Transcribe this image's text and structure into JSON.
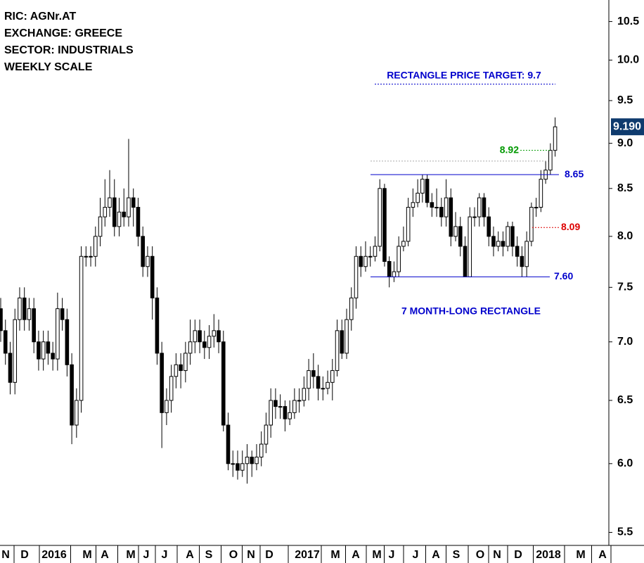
{
  "chart_data": {
    "type": "candlestick",
    "info": [
      "RIC: AGNr.AT",
      "EXCHANGE: GREECE",
      "SECTOR: INDUSTRIALS",
      "WEEKLY SCALE"
    ],
    "annotations": [
      {
        "text": "RECTANGLE PRICE TARGET: 9.7",
        "color": "#0000cc"
      },
      {
        "text": "7 MONTH-LONG RECTANGLE",
        "color": "#0000cc"
      }
    ],
    "categories": [
      "N",
      "D",
      "2016",
      "M",
      "A",
      "M",
      "J",
      "J",
      "A",
      "S",
      "O",
      "N",
      "D",
      "2017",
      "M",
      "A",
      "M",
      "J",
      "J",
      "A",
      "S",
      "O",
      "N",
      "D",
      "2018",
      "M",
      "A"
    ],
    "log_scale": true,
    "ylim": [
      5.41,
      10.79
    ],
    "yticks": [
      {
        "value": 5.5,
        "label": "5.5"
      },
      {
        "value": 6,
        "label": "6.0"
      },
      {
        "value": 6.5,
        "label": "6.5"
      },
      {
        "value": 7,
        "label": "7.0"
      },
      {
        "value": 7.5,
        "label": "7.5"
      },
      {
        "value": 8,
        "label": "8.0"
      },
      {
        "value": 8.5,
        "label": "8.5"
      },
      {
        "value": 9,
        "label": "9.0"
      },
      {
        "value": 9.5,
        "label": "9.5"
      },
      {
        "value": 10,
        "label": "10.0"
      },
      {
        "value": 10.5,
        "label": "10.5"
      }
    ],
    "up_color": "#ffffff",
    "down_color": "#000000",
    "open": [
      7.3,
      7.1,
      6.9,
      6.65,
      7.2,
      7.4,
      7.2,
      7.3,
      7.0,
      6.85,
      7.0,
      6.9,
      6.85,
      7.3,
      7.2,
      6.8,
      6.3,
      6.5,
      7.8,
      7.8,
      7.8,
      8.0,
      8.2,
      8.3,
      8.4,
      8.1,
      8.25,
      8.2,
      8.4,
      8.3,
      8.0,
      7.7,
      7.8,
      7.4,
      6.9,
      6.4,
      6.5,
      6.7,
      6.8,
      6.75,
      6.9,
      7.0,
      7.1,
      7.0,
      6.95,
      7.05,
      7.1,
      7.0,
      6.3,
      6.0,
      6.0,
      5.95,
      6.0,
      6.05,
      6.0,
      6.05,
      6.15,
      6.3,
      6.5,
      6.45,
      6.45,
      6.35,
      6.4,
      6.5,
      6.5,
      6.6,
      6.75,
      6.7,
      6.6,
      6.6,
      6.65,
      6.75,
      7.1,
      6.9,
      7.2,
      7.4,
      7.8,
      7.7,
      7.8,
      7.8,
      7.9,
      8.5,
      7.75,
      7.6,
      7.65,
      7.9,
      7.95,
      8.3,
      8.35,
      8.45,
      8.6,
      8.35,
      8.3,
      8.3,
      8.2,
      8.4,
      8.0,
      8.1,
      7.9,
      7.6,
      8.2,
      8.2,
      8.4,
      8.2,
      8.0,
      7.9,
      7.95,
      7.9,
      8.1,
      7.9,
      7.8,
      7.7,
      7.95,
      8.3,
      8.3,
      8.6,
      8.7,
      8.92
    ],
    "high": [
      7.4,
      7.2,
      7.0,
      7.3,
      7.5,
      7.5,
      7.4,
      7.4,
      7.1,
      7.1,
      7.1,
      7.0,
      7.45,
      7.4,
      7.3,
      6.9,
      6.6,
      7.9,
      7.9,
      7.9,
      8.1,
      8.4,
      8.6,
      8.7,
      8.6,
      8.4,
      8.5,
      9.05,
      8.5,
      8.4,
      8.1,
      7.9,
      7.9,
      7.5,
      7.0,
      6.6,
      6.8,
      6.9,
      6.9,
      7.0,
      7.2,
      7.2,
      7.2,
      7.1,
      7.15,
      7.25,
      7.2,
      7.1,
      6.4,
      6.1,
      6.1,
      6.1,
      6.15,
      6.1,
      6.15,
      6.25,
      6.4,
      6.6,
      6.6,
      6.55,
      6.5,
      6.5,
      6.6,
      6.6,
      6.7,
      6.85,
      6.9,
      6.8,
      6.7,
      6.75,
      6.85,
      7.2,
      7.2,
      7.3,
      7.5,
      7.9,
      7.9,
      7.95,
      7.9,
      8.0,
      8.6,
      8.55,
      7.8,
      7.75,
      8.0,
      8.1,
      8.4,
      8.5,
      8.6,
      8.65,
      8.65,
      8.45,
      8.5,
      8.4,
      8.6,
      8.5,
      8.25,
      8.2,
      8.0,
      8.3,
      8.3,
      8.45,
      8.45,
      8.3,
      8.1,
      8.05,
      8.05,
      8.15,
      8.15,
      8.0,
      7.9,
      8.05,
      8.35,
      8.4,
      8.7,
      8.8,
      9.0,
      9.3
    ],
    "low": [
      7.0,
      6.8,
      6.55,
      6.55,
      7.1,
      7.1,
      7.1,
      6.9,
      6.75,
      6.75,
      6.8,
      6.75,
      6.75,
      7.1,
      6.7,
      6.15,
      6.2,
      6.4,
      7.7,
      7.7,
      7.7,
      7.9,
      8.1,
      8.2,
      8.0,
      8.0,
      8.1,
      8.1,
      8.1,
      7.9,
      7.6,
      7.6,
      7.2,
      6.8,
      6.12,
      6.3,
      6.4,
      6.6,
      6.6,
      6.65,
      6.8,
      6.9,
      6.9,
      6.85,
      6.85,
      6.95,
      6.9,
      6.25,
      5.95,
      5.9,
      5.88,
      5.9,
      5.85,
      5.9,
      5.95,
      5.98,
      6.08,
      6.2,
      6.35,
      6.35,
      6.25,
      6.3,
      6.35,
      6.4,
      6.45,
      6.5,
      6.6,
      6.5,
      6.5,
      6.55,
      6.5,
      6.7,
      6.85,
      6.85,
      7.1,
      7.3,
      7.6,
      7.65,
      7.7,
      7.75,
      7.85,
      7.7,
      7.5,
      7.55,
      7.6,
      7.85,
      7.9,
      8.2,
      8.3,
      8.35,
      8.3,
      8.2,
      8.2,
      8.1,
      8.1,
      7.9,
      7.95,
      7.8,
      7.6,
      7.6,
      8.1,
      8.1,
      8.1,
      7.9,
      7.8,
      7.85,
      7.8,
      7.85,
      7.8,
      7.7,
      7.6,
      7.6,
      7.9,
      8.2,
      8.25,
      8.55,
      8.65,
      8.85
    ],
    "close": [
      7.1,
      6.9,
      6.65,
      7.2,
      7.4,
      7.2,
      7.3,
      7.0,
      6.85,
      7.0,
      6.9,
      6.85,
      7.3,
      7.2,
      6.8,
      6.3,
      6.5,
      7.8,
      7.8,
      7.8,
      8.0,
      8.2,
      8.3,
      8.4,
      8.1,
      8.25,
      8.2,
      8.4,
      8.3,
      8.0,
      7.7,
      7.8,
      7.4,
      6.9,
      6.4,
      6.5,
      6.7,
      6.8,
      6.75,
      6.9,
      7.0,
      7.1,
      7.0,
      6.95,
      7.05,
      7.1,
      7.0,
      6.3,
      6.0,
      6.0,
      5.95,
      6.0,
      6.05,
      6.0,
      6.05,
      6.15,
      6.3,
      6.5,
      6.45,
      6.45,
      6.35,
      6.4,
      6.5,
      6.5,
      6.6,
      6.75,
      6.7,
      6.6,
      6.6,
      6.65,
      6.75,
      7.1,
      6.9,
      7.2,
      7.4,
      7.8,
      7.7,
      7.8,
      7.8,
      7.9,
      8.5,
      7.75,
      7.6,
      7.65,
      7.9,
      7.95,
      8.3,
      8.35,
      8.45,
      8.6,
      8.35,
      8.3,
      8.3,
      8.2,
      8.4,
      8.0,
      8.1,
      7.9,
      7.6,
      8.2,
      8.2,
      8.4,
      8.2,
      8.0,
      7.9,
      7.95,
      7.9,
      8.1,
      7.9,
      7.8,
      7.7,
      7.95,
      8.3,
      8.3,
      8.6,
      8.7,
      8.92,
      9.19
    ],
    "levels": [
      {
        "value": 9.7,
        "color": "#0000cc",
        "dash": true
      },
      {
        "value": 8.8,
        "color": "#aaaaaa",
        "dash": true
      },
      {
        "value": 8.65,
        "label": "8.65",
        "color": "#0000cc",
        "dash": false
      },
      {
        "value": 8.92,
        "label": "8.92",
        "color": "#009900",
        "dash": true
      },
      {
        "value": 8.09,
        "label": "8.09",
        "color": "#dd0000",
        "dash": true
      },
      {
        "value": 7.6,
        "label": "7.60",
        "color": "#0000cc",
        "dash": false
      }
    ],
    "last_price": {
      "value": 9.19,
      "label": "9.190",
      "color": "#0f3b6e"
    }
  }
}
